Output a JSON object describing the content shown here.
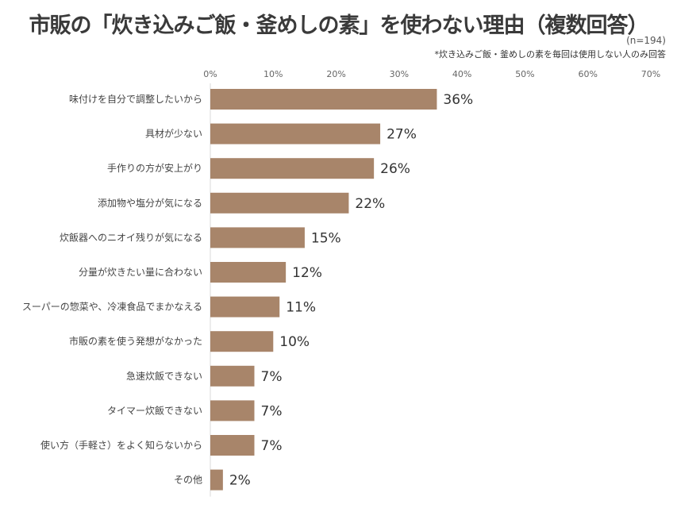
{
  "chart_data": {
    "type": "bar",
    "orientation": "horizontal",
    "title": "市販の「炊き込みご飯・釜めしの素」を使わない理由（複数回答）",
    "sample_size": "(n=194)",
    "note": "*炊き込みご飯・釜めしの素を毎回は使用しない人のみ回答",
    "categories": [
      "味付けを自分で調整したいから",
      "具材が少ない",
      "手作りの方が安上がり",
      "添加物や塩分が気になる",
      "炊飯器へのニオイ残りが気になる",
      "分量が炊きたい量に合わない",
      "スーパーの惣菜や、冷凍食品でまかなえる",
      "市販の素を使う発想がなかった",
      "急速炊飯できない",
      "タイマー炊飯できない",
      "使い方（手軽さ）をよく知らないから",
      "その他"
    ],
    "values": [
      36,
      27,
      26,
      22,
      15,
      12,
      11,
      10,
      7,
      7,
      7,
      2
    ],
    "value_labels": [
      "36%",
      "27%",
      "26%",
      "22%",
      "15%",
      "12%",
      "11%",
      "10%",
      "7%",
      "7%",
      "7%",
      "2%"
    ],
    "xlim": [
      0,
      70
    ],
    "x_ticks": [
      "0%",
      "10%",
      "20%",
      "30%",
      "40%",
      "50%",
      "60%",
      "70%"
    ],
    "x_axis_position": "top",
    "grid": false,
    "bar_color": "#a8856a"
  }
}
